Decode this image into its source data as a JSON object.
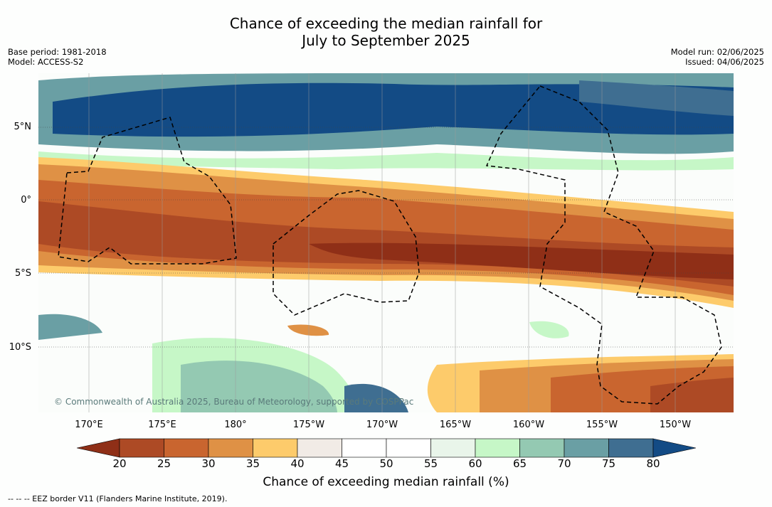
{
  "title": {
    "line1": "Chance of exceeding the median rainfall for",
    "line2": "July to September 2025"
  },
  "meta_left": {
    "base_period": "Base period: 1981-2018",
    "model": "Model: ACCESS-S2"
  },
  "meta_right": {
    "model_run": "Model run: 02/06/2025",
    "issued": "Issued: 04/06/2025"
  },
  "map": {
    "lat_labels": [
      "5°N",
      "0°",
      "5°S",
      "10°S"
    ],
    "lon_labels": [
      "170°E",
      "175°E",
      "180°",
      "175°W",
      "170°W",
      "165°W",
      "160°W",
      "155°W",
      "150°W"
    ],
    "copyright": "© Commonwealth of Australia 2025, Bureau of Meteorology, supported by COSPPac"
  },
  "colorbar": {
    "ticks": [
      "20",
      "25",
      "30",
      "35",
      "40",
      "45",
      "50",
      "55",
      "60",
      "65",
      "70",
      "75",
      "80"
    ],
    "colors": [
      "#8f2f17",
      "#ad4a25",
      "#c9652f",
      "#df9145",
      "#fdcb6b",
      "#f1ebe6",
      "#ffffff",
      "#ffffff",
      "#e9f5ea",
      "#c6f7c7",
      "#94c9b2",
      "#6a9fa4",
      "#3f6e91",
      "#134b85"
    ],
    "label": "Chance of exceeding median rainfall (%)"
  },
  "legend_note": "--  --  -- EEZ border V11 (Flanders Marine Institute, 2019)."
}
